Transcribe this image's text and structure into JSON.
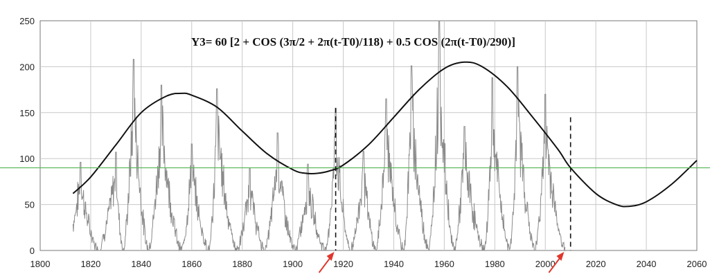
{
  "chart_data": {
    "type": "line",
    "title": "Y3= 60 [2 + COS (3π/2 + 2π(t-T0)/118) + 0.5 COS (2π(t-T0)/290)]",
    "xlim": [
      1800,
      2060
    ],
    "ylim": [
      0,
      250
    ],
    "x_ticks": [
      1800,
      1820,
      1840,
      1860,
      1880,
      1900,
      1920,
      1940,
      1960,
      1980,
      2000,
      2020,
      2040,
      2060
    ],
    "y_ticks": [
      0,
      50,
      100,
      150,
      200,
      250
    ],
    "grid": true,
    "reference_line": {
      "y": 90,
      "color": "#5cb85c"
    },
    "vertical_markers": [
      {
        "x": 1917,
        "top": 155
      },
      {
        "x": 2010,
        "top": 145
      }
    ],
    "arrows_at_x": [
      1917,
      2008
    ],
    "series": [
      {
        "role": "sunspot-number",
        "color": "#8a8a8a",
        "cycles": [
          {
            "min_year": 1810,
            "peak_year": 1816,
            "peak": 96
          },
          {
            "min_year": 1823,
            "peak_year": 1830,
            "peak": 107
          },
          {
            "min_year": 1833,
            "peak_year": 1837,
            "peak": 208
          },
          {
            "min_year": 1843,
            "peak_year": 1848,
            "peak": 180
          },
          {
            "min_year": 1856,
            "peak_year": 1860,
            "peak": 116
          },
          {
            "min_year": 1867,
            "peak_year": 1870,
            "peak": 176
          },
          {
            "min_year": 1878,
            "peak_year": 1883,
            "peak": 90
          },
          {
            "min_year": 1889,
            "peak_year": 1894,
            "peak": 128
          },
          {
            "min_year": 1901,
            "peak_year": 1906,
            "peak": 94
          },
          {
            "min_year": 1913,
            "peak_year": 1917,
            "peak": 155
          },
          {
            "min_year": 1923,
            "peak_year": 1928,
            "peak": 108
          },
          {
            "min_year": 1933,
            "peak_year": 1937,
            "peak": 165
          },
          {
            "min_year": 1944,
            "peak_year": 1947,
            "peak": 201
          },
          {
            "min_year": 1954,
            "peak_year": 1958,
            "peak": 250
          },
          {
            "min_year": 1964,
            "peak_year": 1968,
            "peak": 135
          },
          {
            "min_year": 1976,
            "peak_year": 1979,
            "peak": 188
          },
          {
            "min_year": 1986,
            "peak_year": 1989,
            "peak": 200
          },
          {
            "min_year": 1996,
            "peak_year": 2000,
            "peak": 170
          },
          {
            "min_year": 2008,
            "peak_year": 2008,
            "peak": 0
          }
        ],
        "x_end": 2008
      },
      {
        "role": "model-curve",
        "color": "#111111",
        "formula": "60*(2 + cos(3*pi/2 + 2*pi*(t-T0)/118) + 0.5*cos(2*pi*(t-T0)/290))",
        "points": [
          [
            1813,
            62
          ],
          [
            1820,
            80
          ],
          [
            1830,
            115
          ],
          [
            1840,
            150
          ],
          [
            1850,
            168
          ],
          [
            1856,
            171
          ],
          [
            1860,
            169
          ],
          [
            1870,
            156
          ],
          [
            1880,
            130
          ],
          [
            1890,
            105
          ],
          [
            1900,
            88
          ],
          [
            1905,
            84
          ],
          [
            1910,
            84
          ],
          [
            1915,
            87
          ],
          [
            1920,
            93
          ],
          [
            1930,
            115
          ],
          [
            1940,
            145
          ],
          [
            1950,
            175
          ],
          [
            1960,
            198
          ],
          [
            1968,
            205
          ],
          [
            1975,
            200
          ],
          [
            1985,
            178
          ],
          [
            1995,
            145
          ],
          [
            2005,
            110
          ],
          [
            2010,
            90
          ],
          [
            2020,
            62
          ],
          [
            2028,
            50
          ],
          [
            2033,
            48
          ],
          [
            2040,
            53
          ],
          [
            2050,
            72
          ],
          [
            2060,
            98
          ]
        ]
      }
    ]
  }
}
